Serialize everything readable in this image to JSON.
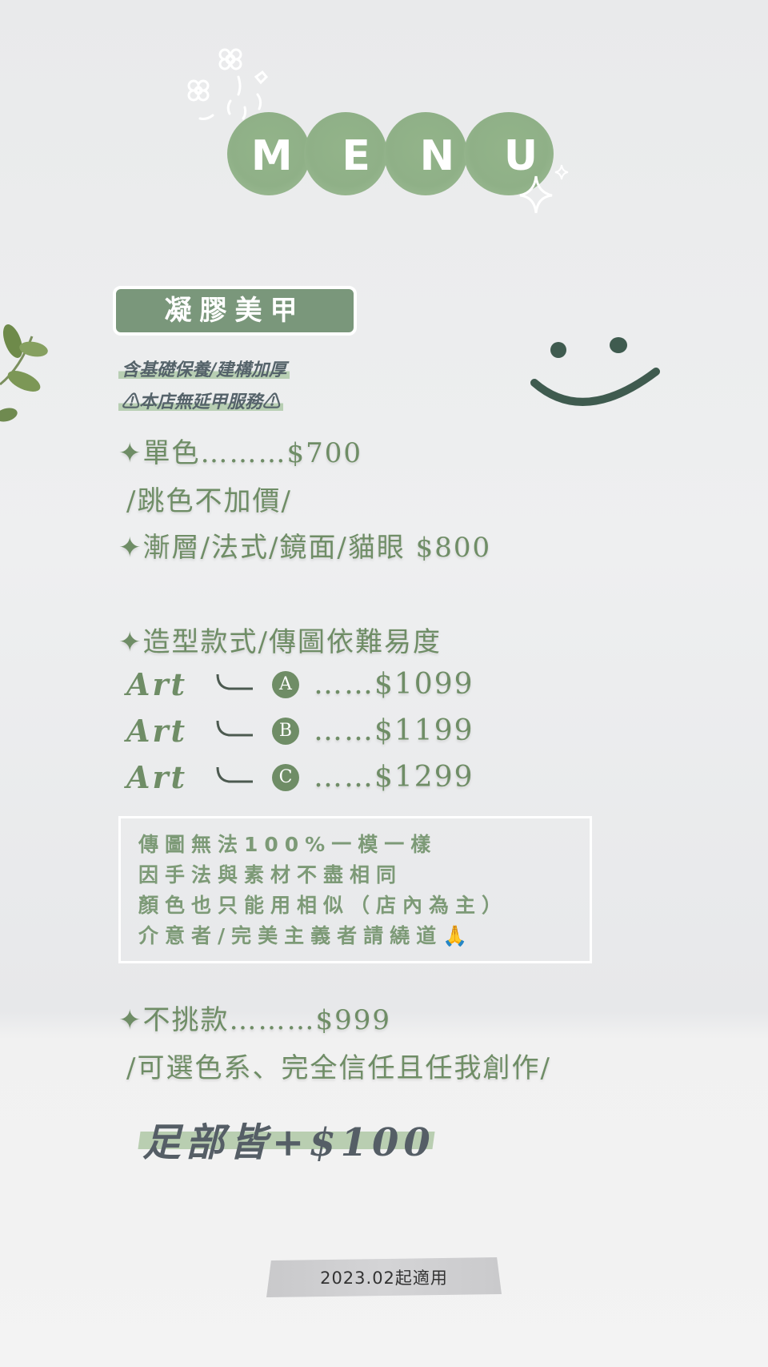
{
  "title": [
    "M",
    "E",
    "N",
    "U"
  ],
  "category": "凝膠美甲",
  "notes": [
    "含基礎保養/建構加厚",
    "⚠本店無延甲服務⚠"
  ],
  "items": {
    "solid": "✦單色………$700",
    "solid_note": "/跳色不加價/",
    "effects": "✦漸層/法式/鏡面/貓眼 $800",
    "design": "✦造型款式/傳圖依難易度"
  },
  "art_tiers": [
    {
      "label": "Art",
      "badge": "A",
      "price": "……$1099"
    },
    {
      "label": "Art",
      "badge": "B",
      "price": "……$1199"
    },
    {
      "label": "Art",
      "badge": "C",
      "price": "……$1299"
    }
  ],
  "disclaimer": [
    "傳圖無法100%一模一樣",
    "因手法與素材不盡相同",
    "顏色也只能用相似（店內為主）",
    "介意者/完美主義者請繞道🙏"
  ],
  "freestyle": "✦不挑款………$999",
  "freestyle_note": "/可選色系、完全信任且任我創作/",
  "foot_note": "足部皆+$100",
  "effective_date": "2023.02起適用",
  "colors": {
    "accent": "#6f8d66",
    "banner": "#7a977b",
    "smiley": "#3f5b4f"
  },
  "icons": [
    "flower-doodle-icon",
    "sparkle-icon",
    "smiley-face-icon",
    "leaf-branch-icon",
    "folded-hands-icon"
  ]
}
